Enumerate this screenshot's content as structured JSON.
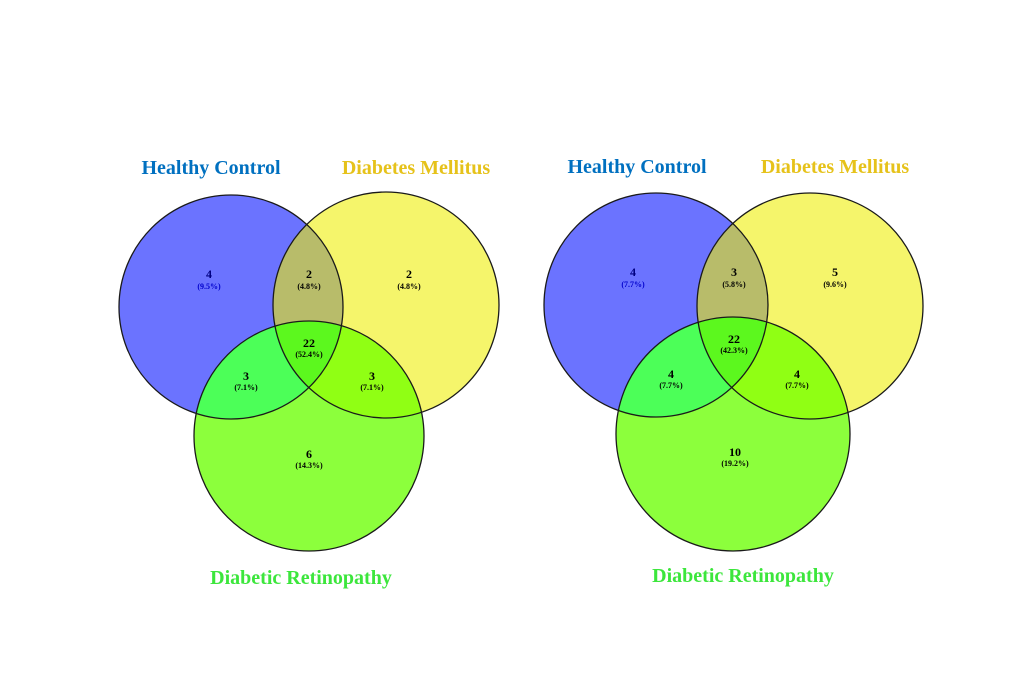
{
  "colors": {
    "healthy_control": "#0070C0",
    "diabetes_mellitus": "#E6C21A",
    "diabetic_retinopathy": "#3CE63C",
    "circle_healthy_fill": "#6B73FF",
    "circle_dm_fill": "#F5F56B",
    "circle_dr_fill": "#8CFF3C",
    "outline": "#1a1a1a"
  },
  "diagrams": [
    {
      "labels": {
        "healthy_control": "Healthy Control",
        "diabetes_mellitus": "Diabetes Mellitus",
        "diabetic_retinopathy": "Diabetic Retinopathy"
      },
      "regions": {
        "hc_only": {
          "count": "4",
          "pct": "(9.5%)"
        },
        "hc_dm": {
          "count": "2",
          "pct": "(4.8%)"
        },
        "dm_only": {
          "count": "2",
          "pct": "(4.8%)"
        },
        "all": {
          "count": "22",
          "pct": "(52.4%)"
        },
        "hc_dr": {
          "count": "3",
          "pct": "(7.1%)"
        },
        "dm_dr": {
          "count": "3",
          "pct": "(7.1%)"
        },
        "dr_only": {
          "count": "6",
          "pct": "(14.3%)"
        }
      }
    },
    {
      "labels": {
        "healthy_control": "Healthy Control",
        "diabetes_mellitus": "Diabetes Mellitus",
        "diabetic_retinopathy": "Diabetic Retinopathy"
      },
      "regions": {
        "hc_only": {
          "count": "4",
          "pct": "(7.7%)"
        },
        "hc_dm": {
          "count": "3",
          "pct": "(5.8%)"
        },
        "dm_only": {
          "count": "5",
          "pct": "(9.6%)"
        },
        "all": {
          "count": "22",
          "pct": "(42.3%)"
        },
        "hc_dr": {
          "count": "4",
          "pct": "(7.7%)"
        },
        "dm_dr": {
          "count": "4",
          "pct": "(7.7%)"
        },
        "dr_only": {
          "count": "10",
          "pct": "(19.2%)"
        }
      }
    }
  ]
}
